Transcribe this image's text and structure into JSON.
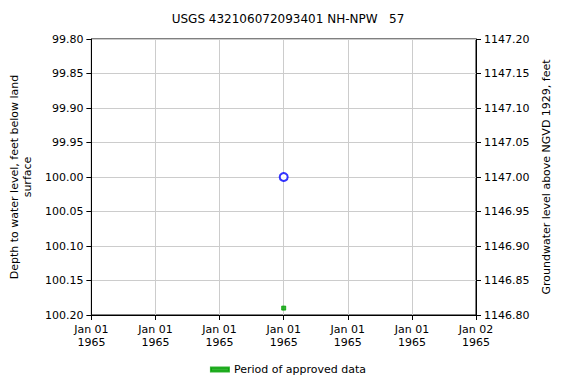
{
  "chart_data": {
    "type": "scatter",
    "title": "USGS 432106072093401 NH-NPW   57",
    "y_label": "Depth to water level, feet below land\nsurface",
    "y2_label": "Groundwater level above NGVD 1929, feet",
    "categories": [
      "Jan 01\n1965",
      "Jan 01\n1965",
      "Jan 01\n1965",
      "Jan 01\n1965",
      "Jan 01\n1965",
      "Jan 01\n1965",
      "Jan 02\n1965"
    ],
    "series": [
      {
        "color": "#0000ff",
        "marker": "circle-open",
        "values": [
          null,
          null,
          null,
          100.0,
          null,
          null,
          null
        ]
      },
      {
        "name": "Period of approved data",
        "color": "#00a000",
        "marker": "square",
        "values": [
          null,
          null,
          null,
          100.19,
          null,
          null,
          null
        ]
      }
    ],
    "ylim": [
      99.8,
      100.2
    ],
    "yticks": [
      {
        "value": 99.8,
        "label": "99.80"
      },
      {
        "value": 99.85,
        "label": "99.85"
      },
      {
        "value": 99.9,
        "label": "99.90"
      },
      {
        "value": 99.95,
        "label": "99.95"
      },
      {
        "value": 100.0,
        "label": "100.00"
      },
      {
        "value": 100.05,
        "label": "100.05"
      },
      {
        "value": 100.1,
        "label": "100.10"
      },
      {
        "value": 100.15,
        "label": "100.15"
      },
      {
        "value": 100.2,
        "label": "100.20"
      }
    ],
    "y2lim": [
      1147.2,
      1146.8
    ],
    "y2ticks": [
      {
        "value": 1147.2,
        "label": "1147.20"
      },
      {
        "value": 1147.15,
        "label": "1147.15"
      },
      {
        "value": 1147.1,
        "label": "1147.10"
      },
      {
        "value": 1147.05,
        "label": "1147.05"
      },
      {
        "value": 1147.0,
        "label": "1147.00"
      },
      {
        "value": 1146.95,
        "label": "1146.95"
      },
      {
        "value": 1146.9,
        "label": "1146.90"
      },
      {
        "value": 1146.85,
        "label": "1146.85"
      },
      {
        "value": 1146.8,
        "label": "1146.80"
      }
    ],
    "grid": true,
    "legend": "bottom"
  }
}
